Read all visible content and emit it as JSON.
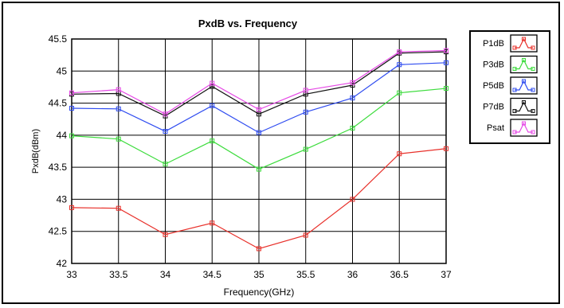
{
  "chart_data": {
    "type": "line",
    "title": "PxdB vs. Frequency",
    "xlabel": "Frequency(GHz)",
    "ylabel": "PxdB(dBm)",
    "x": [
      33,
      33.5,
      34,
      34.5,
      35,
      35.5,
      36,
      36.5,
      37
    ],
    "xlim": [
      33,
      37
    ],
    "ylim": [
      42,
      45.5
    ],
    "xticks": [
      "33",
      "33.5",
      "34",
      "34.5",
      "35",
      "35.5",
      "36",
      "36.5",
      "37"
    ],
    "yticks": [
      "42",
      "42.5",
      "43",
      "43.5",
      "44",
      "44.5",
      "45",
      "45.5"
    ],
    "grid": true,
    "legend_position": "right",
    "series": [
      {
        "name": "P1dB",
        "color": "#e8302a",
        "values": [
          42.87,
          42.86,
          42.45,
          42.63,
          42.23,
          42.44,
          43.0,
          43.71,
          43.79
        ]
      },
      {
        "name": "P3dB",
        "color": "#3ddc3d",
        "values": [
          43.99,
          43.94,
          43.55,
          43.91,
          43.47,
          43.78,
          44.11,
          44.66,
          44.73
        ]
      },
      {
        "name": "P5dB",
        "color": "#2f4cf0",
        "values": [
          44.42,
          44.41,
          44.06,
          44.46,
          44.04,
          44.36,
          44.58,
          45.1,
          45.13
        ]
      },
      {
        "name": "P7dB",
        "color": "#111111",
        "values": [
          44.64,
          44.65,
          44.3,
          44.76,
          44.33,
          44.64,
          44.78,
          45.28,
          45.3
        ]
      },
      {
        "name": "Psat",
        "color": "#e64ae6",
        "values": [
          44.66,
          44.71,
          44.33,
          44.81,
          44.4,
          44.7,
          44.82,
          45.3,
          45.32
        ]
      }
    ]
  }
}
